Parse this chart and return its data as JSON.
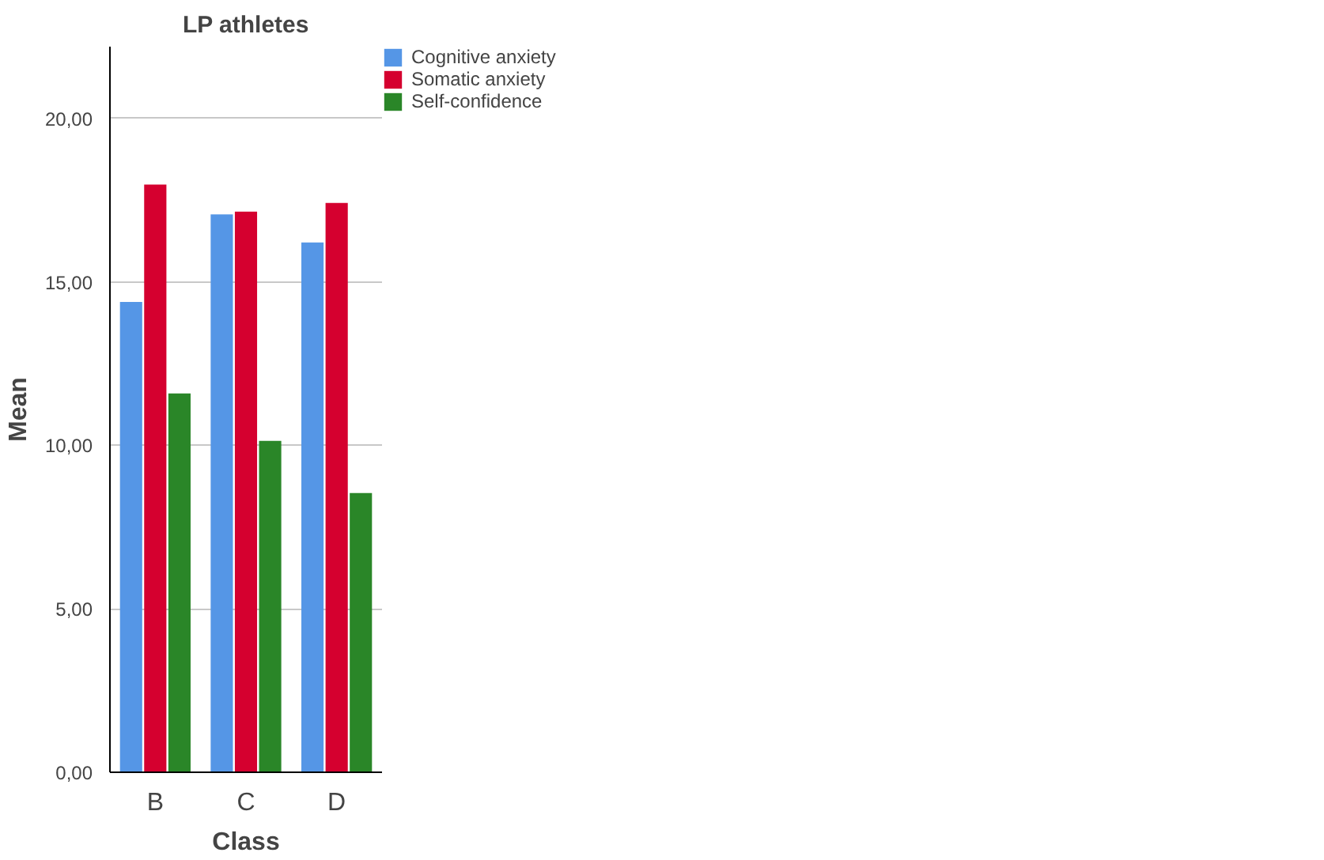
{
  "chart_data": {
    "type": "bar",
    "title": "LP athletes",
    "xlabel": "Class",
    "ylabel": "Mean",
    "categories": [
      "B",
      "C",
      "D"
    ],
    "series": [
      {
        "name": "Cognitive anxiety",
        "color": "#5596e6",
        "values": [
          14.39,
          17.07,
          16.21
        ]
      },
      {
        "name": "Somatic anxiety",
        "color": "#d5002f",
        "values": [
          17.98,
          17.15,
          17.42
        ]
      },
      {
        "name": "Self-confidence",
        "color": "#2a8628",
        "values": [
          11.59,
          10.14,
          8.54
        ]
      }
    ],
    "ylim": [
      0,
      22.2
    ],
    "yticks": [
      {
        "value": 0,
        "label": "0,00"
      },
      {
        "value": 5,
        "label": "5,00"
      },
      {
        "value": 10,
        "label": "10,00"
      },
      {
        "value": 15,
        "label": "15,00"
      },
      {
        "value": 20,
        "label": "20,00"
      }
    ],
    "grid": "y",
    "legend": "top right"
  }
}
